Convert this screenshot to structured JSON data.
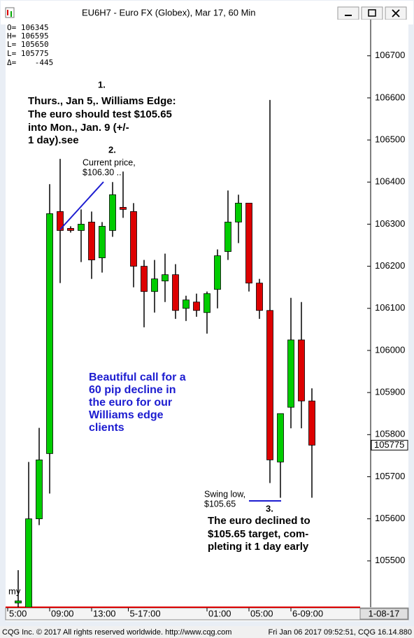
{
  "window_title": "EU6H7 - Euro FX (Globex), Mar 17, 60 Min",
  "readout": [
    "O= 106345",
    "H= 106595",
    "L= 105650",
    "L= 105775",
    "Δ=    -445"
  ],
  "chart_data": {
    "type": "candlestick",
    "open": [
      105400,
      105390,
      105600,
      105755,
      106330,
      106290,
      106285,
      106305,
      106220,
      106285,
      106340,
      106330,
      106200,
      106140,
      106165,
      106180,
      106100,
      106115,
      106090,
      106145,
      106235,
      106305,
      106350,
      106160,
      106095,
      105735,
      105865,
      106025,
      105880
    ],
    "high": [
      105478,
      105735,
      105816,
      106395,
      106455,
      106295,
      106335,
      106330,
      106305,
      106400,
      106425,
      106350,
      106215,
      106215,
      106230,
      106205,
      106130,
      106135,
      106140,
      106240,
      106380,
      106370,
      106350,
      106170,
      106595,
      105850,
      106125,
      106115,
      105910
    ],
    "low": [
      105390,
      105390,
      105585,
      105660,
      106160,
      106280,
      106210,
      106170,
      106185,
      106270,
      106315,
      106150,
      106055,
      106090,
      106115,
      106075,
      106070,
      106080,
      106040,
      106100,
      106215,
      106255,
      106140,
      106075,
      105685,
      105650,
      105815,
      105815,
      105650
    ],
    "close": [
      105405,
      105600,
      105740,
      106325,
      106285,
      106285,
      106300,
      106215,
      106295,
      106370,
      106335,
      106200,
      106140,
      106170,
      106180,
      106095,
      106120,
      106095,
      106135,
      106225,
      106305,
      106350,
      106160,
      106095,
      105740,
      105850,
      106025,
      105880,
      105775
    ],
    "up_color": "#00cc00",
    "down_color": "#dd0000",
    "ylim": [
      105390,
      106786
    ],
    "yticks": [
      105500,
      105600,
      105700,
      105800,
      105900,
      106000,
      106100,
      106200,
      106300,
      106400,
      106500,
      106600,
      106700
    ],
    "xlim": [
      -1.2,
      32.6
    ],
    "xticks": [
      {
        "value": -1,
        "label": "5:00"
      },
      {
        "value": 3,
        "label": "09:00"
      },
      {
        "value": 7,
        "label": "13:00"
      },
      {
        "value": 10.5,
        "label": "5-17:00"
      },
      {
        "value": 18,
        "label": "01:00"
      },
      {
        "value": 22,
        "label": "05:00"
      },
      {
        "value": 26,
        "label": "6-09:00"
      }
    ],
    "last_price": 105775,
    "date_label": "1-08-17",
    "side_label": "my"
  },
  "annotations": {
    "n1": "1.",
    "edge": [
      "Thurs., Jan 5,. Williams Edge:",
      "The euro should test $105.65",
      "into Mon., Jan. 9 (+/-",
      "1 day).see"
    ],
    "n2": "2.",
    "current": [
      "Current price,",
      "$106.30 .."
    ],
    "call": [
      "Beautiful call for a",
      "60 pip decline in",
      "the euro for our",
      "Williams edge",
      "clients"
    ],
    "swing": [
      "Swing low,",
      "$105.65"
    ],
    "n3": "3.",
    "result": [
      "The euro declined to",
      "$105.65 target, com-",
      "pleting it 1 day early"
    ]
  },
  "status_bar": {
    "left": "CQG Inc. © 2017 All rights reserved worldwide. http://www.cqg.com",
    "right": "Fri Jan 06 2017 09:52:51, CQG 16.14.880"
  }
}
